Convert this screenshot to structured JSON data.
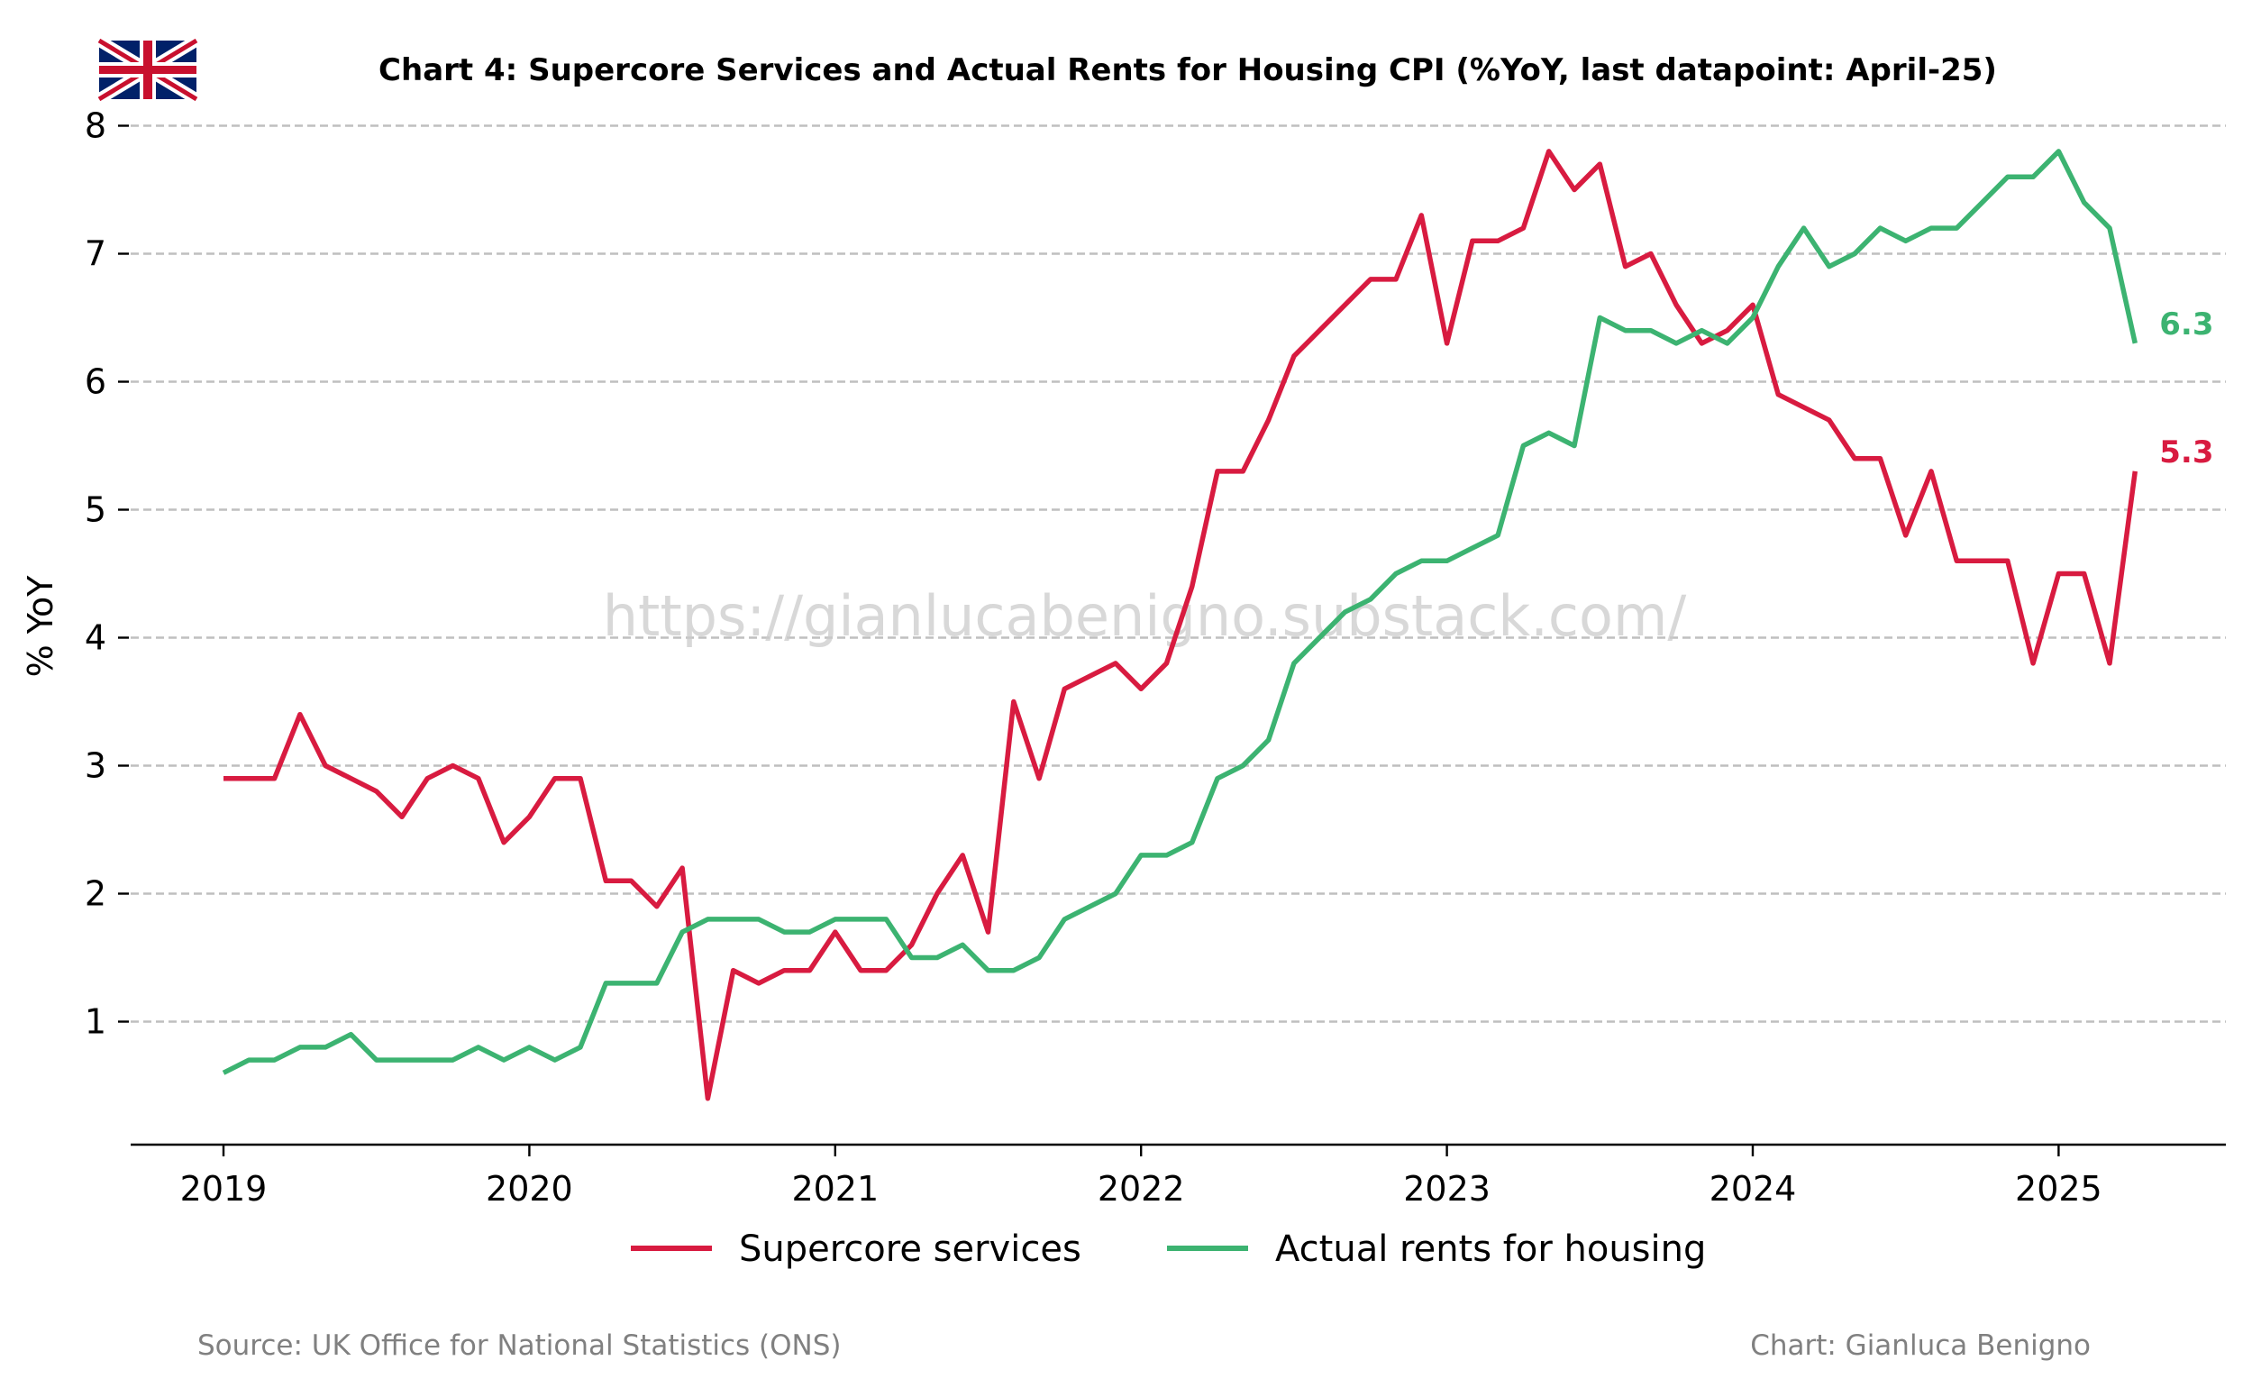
{
  "chart_data": {
    "type": "line",
    "title": "Chart 4: Supercore Services and Actual Rents for Housing CPI (%YoY, last datapoint: April-25)",
    "ylabel": "% YoY",
    "xlabel": "",
    "ylim": [
      0.05,
      8.05
    ],
    "yticks": [
      1,
      2,
      3,
      4,
      5,
      6,
      7,
      8
    ],
    "xticks": [
      "2019",
      "2020",
      "2021",
      "2022",
      "2023",
      "2024",
      "2025"
    ],
    "grid": "y-dashed",
    "legend_position": "bottom-center",
    "x_start": "2019-01",
    "x_end": "2025-04",
    "series": [
      {
        "name": "Supercore services",
        "color": "#d81b40",
        "end_label": "5.3",
        "values": [
          2.9,
          2.9,
          2.9,
          3.4,
          3.0,
          2.9,
          2.8,
          2.6,
          2.9,
          3.0,
          2.9,
          2.4,
          2.6,
          2.9,
          2.9,
          2.1,
          2.1,
          1.9,
          2.2,
          0.4,
          1.4,
          1.3,
          1.4,
          1.4,
          1.7,
          1.4,
          1.4,
          1.6,
          2.0,
          2.3,
          1.7,
          3.5,
          2.9,
          3.6,
          3.7,
          3.8,
          3.6,
          3.8,
          4.4,
          5.3,
          5.3,
          5.7,
          6.2,
          6.4,
          6.6,
          6.8,
          6.8,
          7.3,
          6.3,
          7.1,
          7.1,
          7.2,
          7.8,
          7.5,
          7.7,
          6.9,
          7.0,
          6.6,
          6.3,
          6.4,
          6.6,
          5.9,
          5.8,
          5.7,
          5.4,
          5.4,
          4.8,
          5.3,
          4.6,
          4.6,
          4.6,
          3.8,
          4.5,
          4.5,
          3.8,
          5.3
        ]
      },
      {
        "name": "Actual rents for housing",
        "color": "#3cb371",
        "end_label": "6.3",
        "values": [
          0.6,
          0.7,
          0.7,
          0.8,
          0.8,
          0.9,
          0.7,
          0.7,
          0.7,
          0.7,
          0.8,
          0.7,
          0.8,
          0.7,
          0.8,
          1.3,
          1.3,
          1.3,
          1.7,
          1.8,
          1.8,
          1.8,
          1.7,
          1.7,
          1.8,
          1.8,
          1.8,
          1.5,
          1.5,
          1.6,
          1.4,
          1.4,
          1.5,
          1.8,
          1.9,
          2.0,
          2.3,
          2.3,
          2.4,
          2.9,
          3.0,
          3.2,
          3.8,
          4.0,
          4.2,
          4.3,
          4.5,
          4.6,
          4.6,
          4.7,
          4.8,
          5.5,
          5.6,
          5.5,
          6.5,
          6.4,
          6.4,
          6.3,
          6.4,
          6.3,
          6.5,
          6.9,
          7.2,
          6.9,
          7.0,
          7.2,
          7.1,
          7.2,
          7.2,
          7.4,
          7.6,
          7.6,
          7.8,
          7.4,
          7.2,
          6.3
        ]
      }
    ]
  },
  "watermark": "https://gianlucabenigno.substack.com/",
  "footer": {
    "source": "Source: UK Office for National Statistics (ONS)",
    "credit": "Chart: Gianluca Benigno"
  },
  "flag_icon": "uk-flag-icon"
}
